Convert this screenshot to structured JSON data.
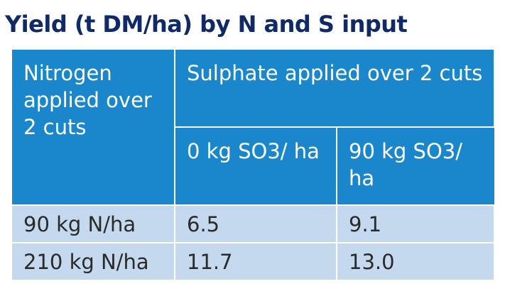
{
  "title": "Yield (t DM/ha) by N and S input",
  "table": {
    "header": {
      "nitrogen": "Nitrogen applied over 2 cuts",
      "sulphate": "Sulphate applied over 2 cuts",
      "sub_columns": [
        "0 kg SO3/ ha",
        "90 kg SO3/ ha"
      ]
    },
    "rows": [
      {
        "nitrogen": "90 kg N/ha",
        "s0": "6.5",
        "s90": "9.1"
      },
      {
        "nitrogen": "210 kg N/ha",
        "s0": "11.7",
        "s90": "13.0"
      }
    ]
  },
  "colors": {
    "title": "#0f2a66",
    "header_bg": "#1a87cc",
    "header_text": "#ffffff",
    "body_bg": "#c4d9ee",
    "body_text": "#2a2a2a",
    "grid": "#ffffff"
  }
}
